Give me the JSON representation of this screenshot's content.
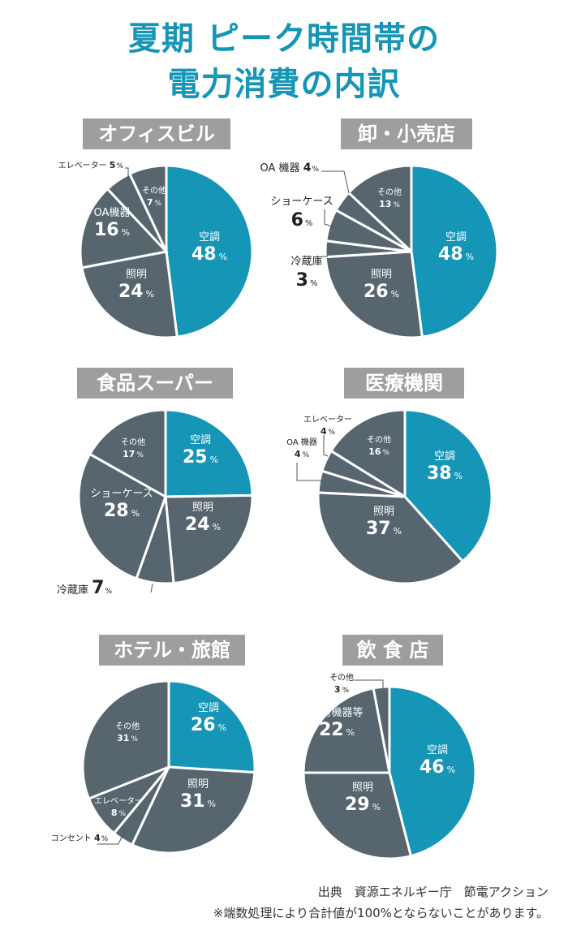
{
  "title": {
    "line1": "夏期 ピーク時間帯の",
    "line2": "電力消費の内訳"
  },
  "chart_data": [
    {
      "type": "pie",
      "title": "オフィスビル",
      "slices": [
        {
          "label": "空調",
          "value": 48
        },
        {
          "label": "照明",
          "value": 24
        },
        {
          "label": "OA機器",
          "value": 16
        },
        {
          "label": "エレベーター",
          "value": 5
        },
        {
          "label": "その他",
          "value": 7
        }
      ]
    },
    {
      "type": "pie",
      "title": "卸・小売店",
      "slices": [
        {
          "label": "空調",
          "value": 48
        },
        {
          "label": "照明",
          "value": 26
        },
        {
          "label": "冷蔵庫",
          "value": 3
        },
        {
          "label": "ショーケース",
          "value": 6
        },
        {
          "label": "OA 機器",
          "value": 4
        },
        {
          "label": "その他",
          "value": 13
        }
      ]
    },
    {
      "type": "pie",
      "title": "食品スーパー",
      "slices": [
        {
          "label": "空調",
          "value": 25
        },
        {
          "label": "照明",
          "value": 24
        },
        {
          "label": "冷蔵庫",
          "value": 7
        },
        {
          "label": "ショーケース",
          "value": 28
        },
        {
          "label": "その他",
          "value": 17
        }
      ]
    },
    {
      "type": "pie",
      "title": "医療機関",
      "slices": [
        {
          "label": "空調",
          "value": 38
        },
        {
          "label": "照明",
          "value": 37
        },
        {
          "label": "OA 機器",
          "value": 4
        },
        {
          "label": "エレベーター",
          "value": 4
        },
        {
          "label": "その他",
          "value": 16
        }
      ]
    },
    {
      "type": "pie",
      "title": "ホテル・旅館",
      "slices": [
        {
          "label": "空調",
          "value": 26
        },
        {
          "label": "照明",
          "value": 31
        },
        {
          "label": "コンセント",
          "value": 4
        },
        {
          "label": "エレベーター",
          "value": 8
        },
        {
          "label": "その他",
          "value": 31
        }
      ]
    },
    {
      "type": "pie",
      "title": "飲 食 店",
      "slices": [
        {
          "label": "空調",
          "value": 46
        },
        {
          "label": "照明",
          "value": 29
        },
        {
          "label": "厨房機器等",
          "value": 22
        },
        {
          "label": "その他",
          "value": 3
        }
      ]
    }
  ],
  "colors": {
    "accent": "#1596b6",
    "slice": "#56656e",
    "header": "#9e9e9e",
    "label": "#ffffff"
  },
  "pct_symbol": "%",
  "footer": {
    "source": "出典　資源エネルギー庁　節電アクション",
    "note": "※端数処理により合計値が100%とならないことがあります。"
  }
}
